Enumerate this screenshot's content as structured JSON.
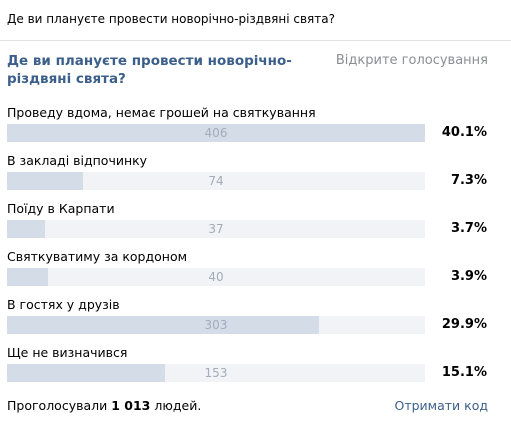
{
  "post": {
    "question": "Де ви плануєте провести новорічно-різдвяні свята?"
  },
  "poll": {
    "title": "Де ви плануєте провести новорічно-різдвяні свята?",
    "type_label": "Відкрите голосування",
    "options": [
      {
        "label": "Проведу вдома, немає грошей на святкування",
        "votes": "406",
        "percent": "40.1%",
        "share": 1.0
      },
      {
        "label": "В закладі відпочинку",
        "votes": "74",
        "percent": "7.3%",
        "share": 0.182
      },
      {
        "label": "Поїду в Карпати",
        "votes": "37",
        "percent": "3.7%",
        "share": 0.091
      },
      {
        "label": "Святкуватиму за кордоном",
        "votes": "40",
        "percent": "3.9%",
        "share": 0.099
      },
      {
        "label": "В гостях у друзів",
        "votes": "303",
        "percent": "29.9%",
        "share": 0.746
      },
      {
        "label": "Ще не визначився",
        "votes": "153",
        "percent": "15.1%",
        "share": 0.377
      }
    ]
  },
  "footer": {
    "votes_prefix": "Проголосували",
    "votes_total": "1 013",
    "votes_suffix": "людей.",
    "get_code_label": "Отримати код"
  },
  "colors": {
    "bar_background": "#f1f3f6",
    "bar_fill": "#d4dce8",
    "link": "#3b5f8a"
  }
}
